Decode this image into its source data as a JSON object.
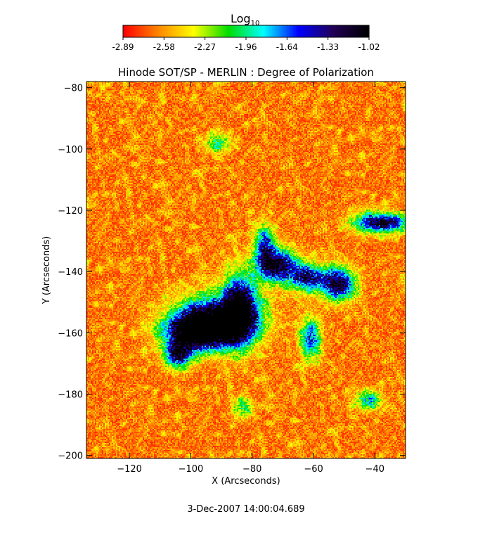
{
  "chart_data": {
    "type": "heatmap",
    "title": "Hinode SOT/SP - MERLIN : Degree of Polarization",
    "xlabel": "X (Arcseconds)",
    "ylabel": "Y (Arcseconds)",
    "xlim": [
      -134,
      -30
    ],
    "ylim": [
      -201,
      -78
    ],
    "xticks": [
      -120,
      -100,
      -80,
      -60,
      -40
    ],
    "yticks": [
      -80,
      -100,
      -120,
      -140,
      -160,
      -180,
      -200
    ],
    "colorbar": {
      "label_base": "Log",
      "label_sub": "10",
      "ticks": [
        "-2.89",
        "-2.58",
        "-2.27",
        "-1.96",
        "-1.64",
        "-1.33",
        "-1.02"
      ],
      "colormap": [
        "#ff0000",
        "#ff8800",
        "#ffff00",
        "#00dd00",
        "#00ffff",
        "#0000ff",
        "#220055",
        "#000000"
      ]
    },
    "blobs": [
      {
        "x": -92,
        "y": -156,
        "rx": 12,
        "ry": 7,
        "strength": 1.0
      },
      {
        "x": -84,
        "y": -152,
        "rx": 5,
        "ry": 10,
        "strength": 0.95
      },
      {
        "x": -98,
        "y": -160,
        "rx": 9,
        "ry": 5,
        "strength": 0.95
      },
      {
        "x": -104,
        "y": -167,
        "rx": 4,
        "ry": 4,
        "strength": 0.8
      },
      {
        "x": -72,
        "y": -138,
        "rx": 6,
        "ry": 5,
        "strength": 0.9
      },
      {
        "x": -62,
        "y": -142,
        "rx": 5,
        "ry": 4,
        "strength": 0.75
      },
      {
        "x": -52,
        "y": -144,
        "rx": 5,
        "ry": 5,
        "strength": 0.85
      },
      {
        "x": -76,
        "y": -131,
        "rx": 3,
        "ry": 6,
        "strength": 0.55
      },
      {
        "x": -61,
        "y": -162,
        "rx": 3,
        "ry": 6,
        "strength": 0.6
      },
      {
        "x": -38,
        "y": -124,
        "rx": 8,
        "ry": 3,
        "strength": 0.85
      },
      {
        "x": -42,
        "y": -182,
        "rx": 4,
        "ry": 3,
        "strength": 0.45
      },
      {
        "x": -91,
        "y": -98,
        "rx": 4,
        "ry": 3,
        "strength": 0.35
      },
      {
        "x": -83,
        "y": -184,
        "rx": 3,
        "ry": 3,
        "strength": 0.35
      }
    ]
  },
  "footer": {
    "timestamp": "3-Dec-2007 14:00:04.689"
  }
}
